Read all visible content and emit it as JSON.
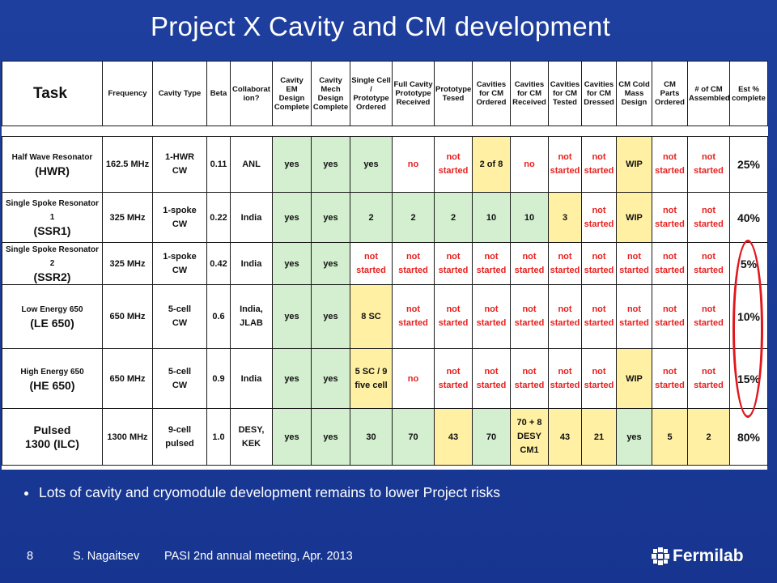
{
  "title": "Project X Cavity and CM development",
  "table": {
    "headers": [
      [
        "Task"
      ],
      [
        "Frequency"
      ],
      [
        "Cavity Type"
      ],
      [
        "Beta"
      ],
      [
        "Collaborat",
        "ion?"
      ],
      [
        "Cavity EM",
        "Design",
        "Complete"
      ],
      [
        "Cavity",
        "Mech",
        "Design",
        "Complete"
      ],
      [
        "Single Cell",
        "/",
        "Prototype",
        "Ordered"
      ],
      [
        "Full Cavity",
        "Prototype",
        "Received"
      ],
      [
        "Prototype",
        "Tesed"
      ],
      [
        "Cavities",
        "for CM",
        "Ordered"
      ],
      [
        "Cavities",
        "for CM",
        "Received"
      ],
      [
        "Cavities",
        "for CM",
        "Tested"
      ],
      [
        "Cavities",
        "for CM",
        "Dressed"
      ],
      [
        "CM Cold",
        "Mass",
        "Design"
      ],
      [
        "CM Parts",
        "Ordered"
      ],
      [
        "# of CM",
        "Assembled"
      ],
      [
        "Est %",
        "complete"
      ]
    ],
    "rows": [
      {
        "task": [
          "Half Wave Resonator",
          "(HWR)"
        ],
        "cells": [
          {
            "t": "162.5 MHz",
            "c": ""
          },
          {
            "t": "1-HWR\nCW",
            "c": ""
          },
          {
            "t": "0.11",
            "c": ""
          },
          {
            "t": "ANL",
            "c": ""
          },
          {
            "t": "yes",
            "c": "g"
          },
          {
            "t": "yes",
            "c": "g"
          },
          {
            "t": "yes",
            "c": "g"
          },
          {
            "t": "no",
            "c": "red"
          },
          {
            "t": "not\nstarted",
            "c": "red"
          },
          {
            "t": "2 of 8",
            "c": "y"
          },
          {
            "t": "no",
            "c": "red"
          },
          {
            "t": "not\nstarted",
            "c": "red"
          },
          {
            "t": "not\nstarted",
            "c": "red"
          },
          {
            "t": "WIP",
            "c": "y"
          },
          {
            "t": "not\nstarted",
            "c": "red"
          },
          {
            "t": "not\nstarted",
            "c": "red"
          },
          {
            "t": "25%",
            "c": "pct"
          }
        ]
      },
      {
        "task": [
          "Single Spoke Resonator 1",
          "(SSR1)"
        ],
        "cells": [
          {
            "t": "325 MHz",
            "c": ""
          },
          {
            "t": "1-spoke\nCW",
            "c": ""
          },
          {
            "t": "0.22",
            "c": ""
          },
          {
            "t": "India",
            "c": ""
          },
          {
            "t": "yes",
            "c": "g"
          },
          {
            "t": "yes",
            "c": "g"
          },
          {
            "t": "2",
            "c": "g"
          },
          {
            "t": "2",
            "c": "g"
          },
          {
            "t": "2",
            "c": "g"
          },
          {
            "t": "10",
            "c": "g"
          },
          {
            "t": "10",
            "c": "g"
          },
          {
            "t": "3",
            "c": "y"
          },
          {
            "t": "not\nstarted",
            "c": "red"
          },
          {
            "t": "WIP",
            "c": "y"
          },
          {
            "t": "not\nstarted",
            "c": "red"
          },
          {
            "t": "not\nstarted",
            "c": "red"
          },
          {
            "t": "40%",
            "c": "pct"
          }
        ]
      },
      {
        "task": [
          "Single Spoke Resonator 2",
          "(SSR2)"
        ],
        "cells": [
          {
            "t": "325 MHz",
            "c": ""
          },
          {
            "t": "1-spoke\nCW",
            "c": ""
          },
          {
            "t": "0.42",
            "c": ""
          },
          {
            "t": "India",
            "c": ""
          },
          {
            "t": "yes",
            "c": "g"
          },
          {
            "t": "yes",
            "c": "g"
          },
          {
            "t": "not\nstarted",
            "c": "red"
          },
          {
            "t": "not\nstarted",
            "c": "red"
          },
          {
            "t": "not\nstarted",
            "c": "red"
          },
          {
            "t": "not\nstarted",
            "c": "red"
          },
          {
            "t": "not\nstarted",
            "c": "red"
          },
          {
            "t": "not\nstarted",
            "c": "red"
          },
          {
            "t": "not\nstarted",
            "c": "red"
          },
          {
            "t": "not\nstarted",
            "c": "red"
          },
          {
            "t": "not\nstarted",
            "c": "red"
          },
          {
            "t": "not\nstarted",
            "c": "red"
          },
          {
            "t": "5%",
            "c": "pct"
          }
        ]
      },
      {
        "task": [
          "Low Energy 650",
          "(LE 650)"
        ],
        "cells": [
          {
            "t": "650 MHz",
            "c": ""
          },
          {
            "t": "5-cell\nCW",
            "c": ""
          },
          {
            "t": "0.6",
            "c": ""
          },
          {
            "t": "India,\nJLAB",
            "c": ""
          },
          {
            "t": "yes",
            "c": "g"
          },
          {
            "t": "yes",
            "c": "g"
          },
          {
            "t": "8 SC",
            "c": "y"
          },
          {
            "t": "not\nstarted",
            "c": "red"
          },
          {
            "t": "not\nstarted",
            "c": "red"
          },
          {
            "t": "not\nstarted",
            "c": "red"
          },
          {
            "t": "not\nstarted",
            "c": "red"
          },
          {
            "t": "not\nstarted",
            "c": "red"
          },
          {
            "t": "not\nstarted",
            "c": "red"
          },
          {
            "t": "not\nstarted",
            "c": "red"
          },
          {
            "t": "not\nstarted",
            "c": "red"
          },
          {
            "t": "not\nstarted",
            "c": "red"
          },
          {
            "t": "10%",
            "c": "pct"
          }
        ]
      },
      {
        "task": [
          "High Energy 650",
          "(HE 650)"
        ],
        "cells": [
          {
            "t": "650 MHz",
            "c": ""
          },
          {
            "t": "5-cell\nCW",
            "c": ""
          },
          {
            "t": "0.9",
            "c": ""
          },
          {
            "t": "India",
            "c": ""
          },
          {
            "t": "yes",
            "c": "g"
          },
          {
            "t": "yes",
            "c": "g"
          },
          {
            "t": "5 SC / 9\nfive cell",
            "c": "y"
          },
          {
            "t": "no",
            "c": "red"
          },
          {
            "t": "not\nstarted",
            "c": "red"
          },
          {
            "t": "not\nstarted",
            "c": "red"
          },
          {
            "t": "not\nstarted",
            "c": "red"
          },
          {
            "t": "not\nstarted",
            "c": "red"
          },
          {
            "t": "not\nstarted",
            "c": "red"
          },
          {
            "t": "WIP",
            "c": "y"
          },
          {
            "t": "not\nstarted",
            "c": "red"
          },
          {
            "t": "not\nstarted",
            "c": "red"
          },
          {
            "t": "15%",
            "c": "pct"
          }
        ]
      },
      {
        "task": [
          "Pulsed",
          "1300 (ILC)"
        ],
        "plain": true,
        "cells": [
          {
            "t": "1300 MHz",
            "c": ""
          },
          {
            "t": "9-cell\npulsed",
            "c": ""
          },
          {
            "t": "1.0",
            "c": ""
          },
          {
            "t": "DESY,\nKEK",
            "c": ""
          },
          {
            "t": "yes",
            "c": "g"
          },
          {
            "t": "yes",
            "c": "g"
          },
          {
            "t": "30",
            "c": "g"
          },
          {
            "t": "70",
            "c": "g"
          },
          {
            "t": "43",
            "c": "y"
          },
          {
            "t": "70",
            "c": "g"
          },
          {
            "t": "70 + 8\nDESY\nCM1",
            "c": "y"
          },
          {
            "t": "43",
            "c": "y"
          },
          {
            "t": "21",
            "c": "y"
          },
          {
            "t": "yes",
            "c": "g"
          },
          {
            "t": "5",
            "c": "y"
          },
          {
            "t": "2",
            "c": "y"
          },
          {
            "t": "80%",
            "c": "pct"
          }
        ]
      }
    ]
  },
  "bullet": "Lots of cavity and cryomodule development remains to lower Project risks",
  "footer": {
    "page_number": "8",
    "author": "S. Nagaitsev",
    "event": "PASI 2nd annual meeting, Apr. 2013"
  },
  "logo": {
    "text": "Fermilab",
    "icon": "fermilab-logo-icon"
  },
  "colors": {
    "background": "#1f3f9e",
    "green_cell": "#d3efcf",
    "yellow_cell": "#fff0a4",
    "red_text": "#e8201e",
    "highlight_ellipse": "#e0171c"
  }
}
